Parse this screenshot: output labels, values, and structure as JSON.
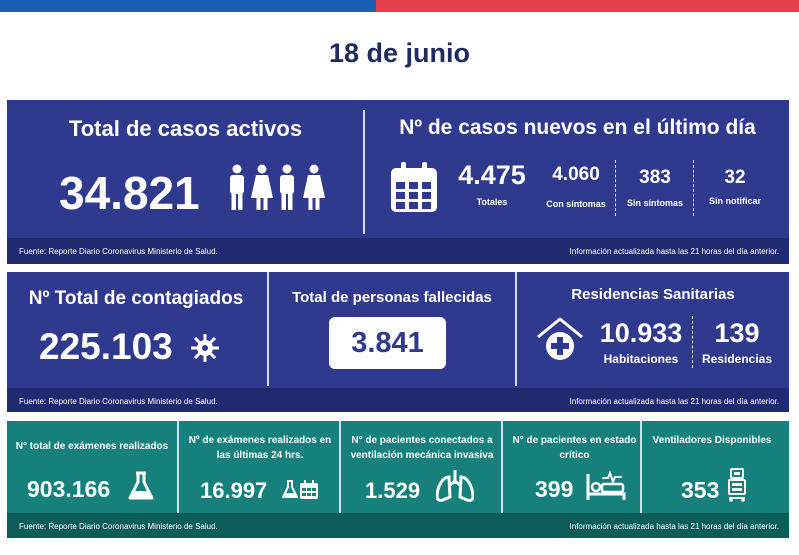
{
  "date": "18 de junio",
  "footer_source": "Fuente: Reporte Diario Coronavirus Ministerio de Salud.",
  "footer_update": "Información actualizada hasta las 21 horas  del día anterior.",
  "active": {
    "title": "Total de casos activos",
    "value": "34.821"
  },
  "new_cases": {
    "title": "Nº de casos nuevos en el último día",
    "total_value": "4.475",
    "total_label": "Totales",
    "sym_value": "4.060",
    "sym_label": "Con síntomas",
    "nosym_value": "383",
    "nosym_label": "Sin síntomas",
    "unreported_value": "32",
    "unreported_label": "Sin notificar"
  },
  "contagiados": {
    "title": "Nº Total de contagiados",
    "value": "225.103"
  },
  "fallecidos": {
    "title": "Total de personas fallecidas",
    "value": "3.841"
  },
  "residencias": {
    "title": "Residencias Sanitarias",
    "rooms_value": "10.933",
    "rooms_label": "Habitaciones",
    "res_value": "139",
    "res_label": "Residencias"
  },
  "exams_total": {
    "title": "N° total de exámenes realizados",
    "value": "903.166"
  },
  "exams_24h": {
    "title": "Nº de exámenes realizados en las últimas 24 hrs.",
    "value": "16.997"
  },
  "ventilated": {
    "title": "N° de pacientes conectados a ventilación mecánica invasiva",
    "value": "1.529"
  },
  "critical": {
    "title": "N° de pacientes  en estado crítico",
    "value": "399"
  },
  "ventilators": {
    "title": "Ventiladores Disponibles",
    "value": "353"
  },
  "colors": {
    "navy": "#2f3a8f",
    "navy_dark": "#202a6e",
    "teal": "#16807c",
    "teal_dark": "#0c5d5a",
    "blue_bar": "#1a5fb4",
    "red_bar": "#e83e4c",
    "date_text": "#1f2b5e"
  }
}
